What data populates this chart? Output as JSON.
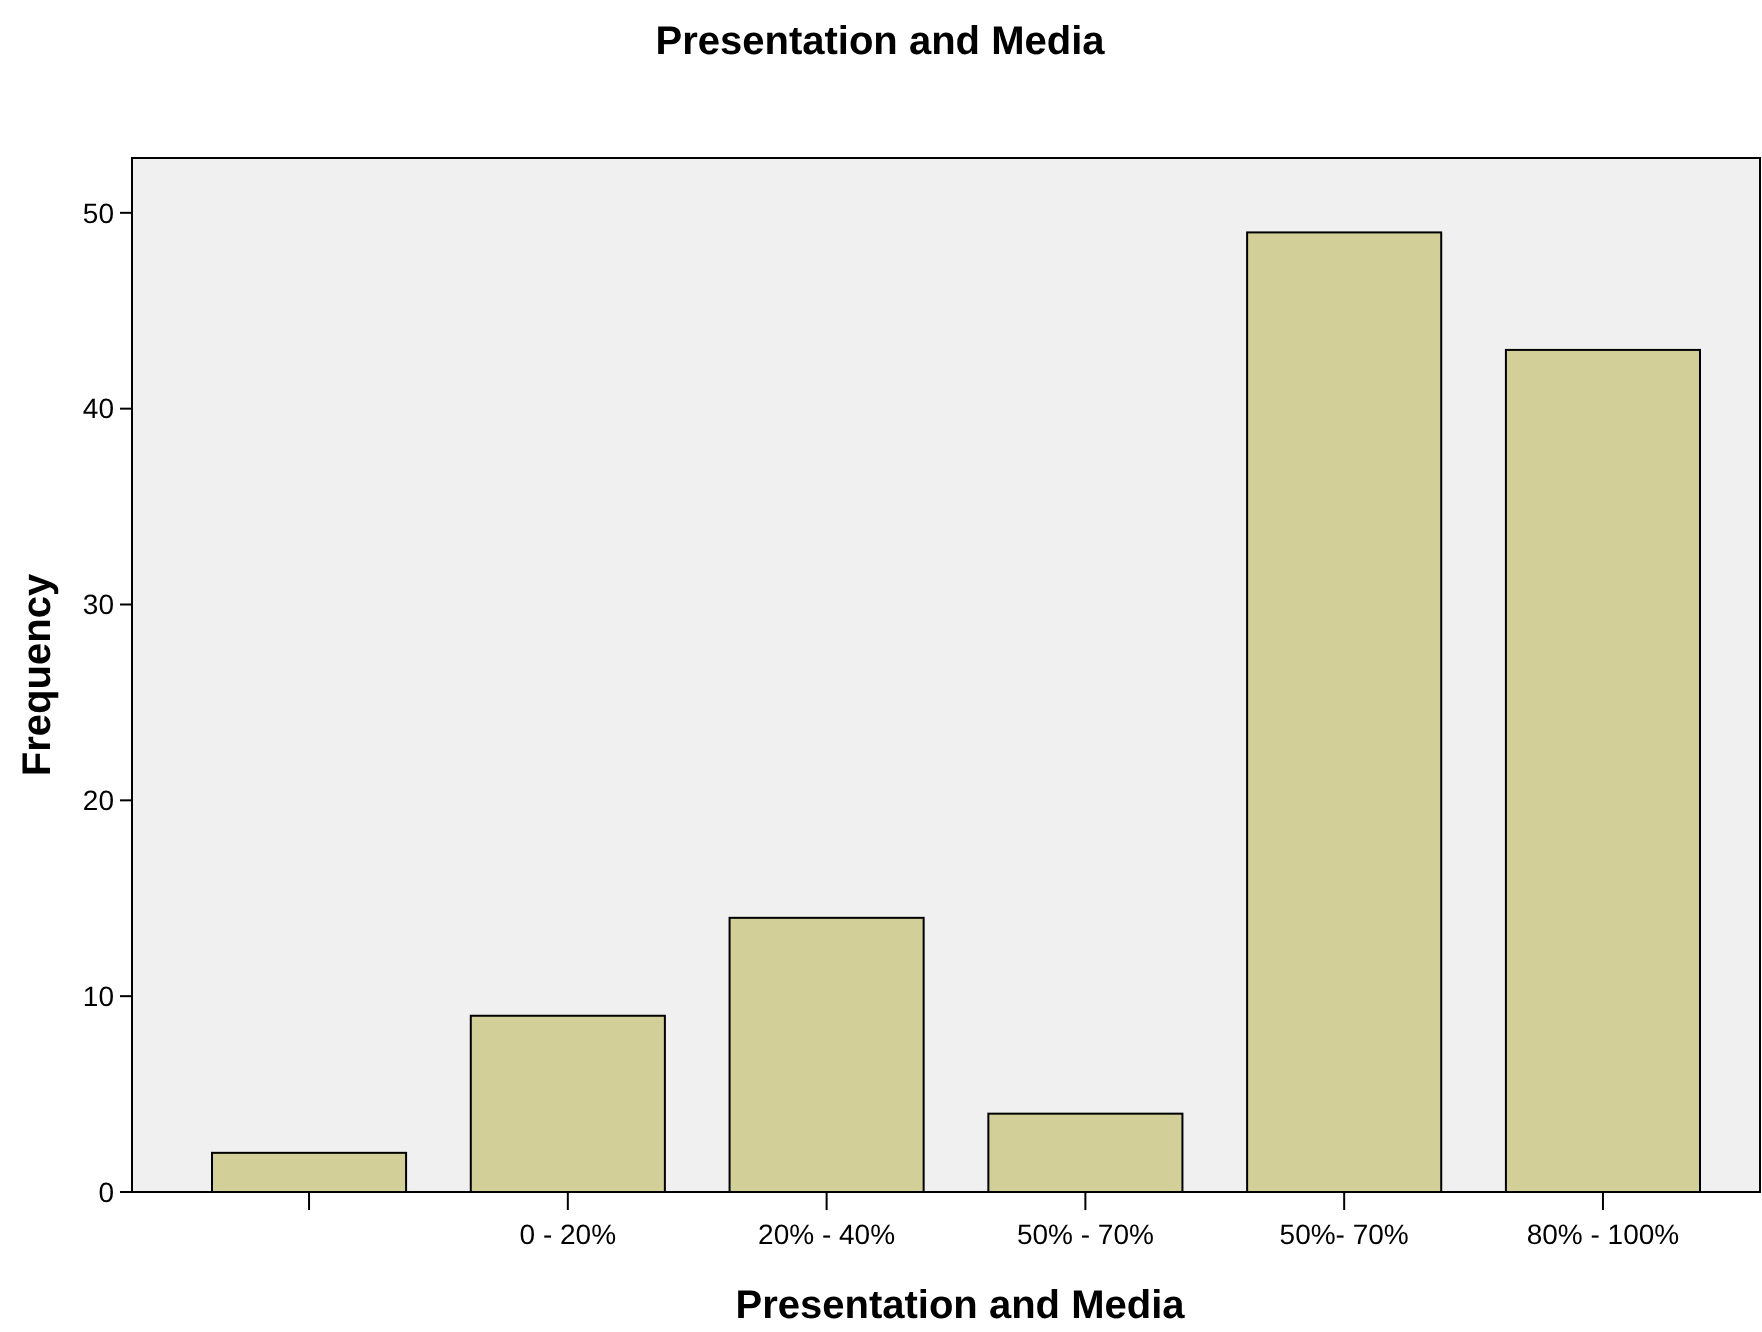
{
  "chart_data": {
    "type": "bar",
    "title": "Presentation and Media",
    "xlabel": "Presentation and Media",
    "ylabel": "Frequency",
    "categories": [
      null,
      "0 - 20%",
      "20% - 40%",
      "50% - 70%",
      "50%- 70%",
      "80% - 100%"
    ],
    "values": [
      2,
      9,
      14,
      4,
      49,
      43
    ],
    "color": "#d3cf98",
    "ylim": [
      0,
      52.8
    ],
    "yticks": [
      0,
      10,
      20,
      30,
      40,
      50
    ],
    "grid": false
  }
}
